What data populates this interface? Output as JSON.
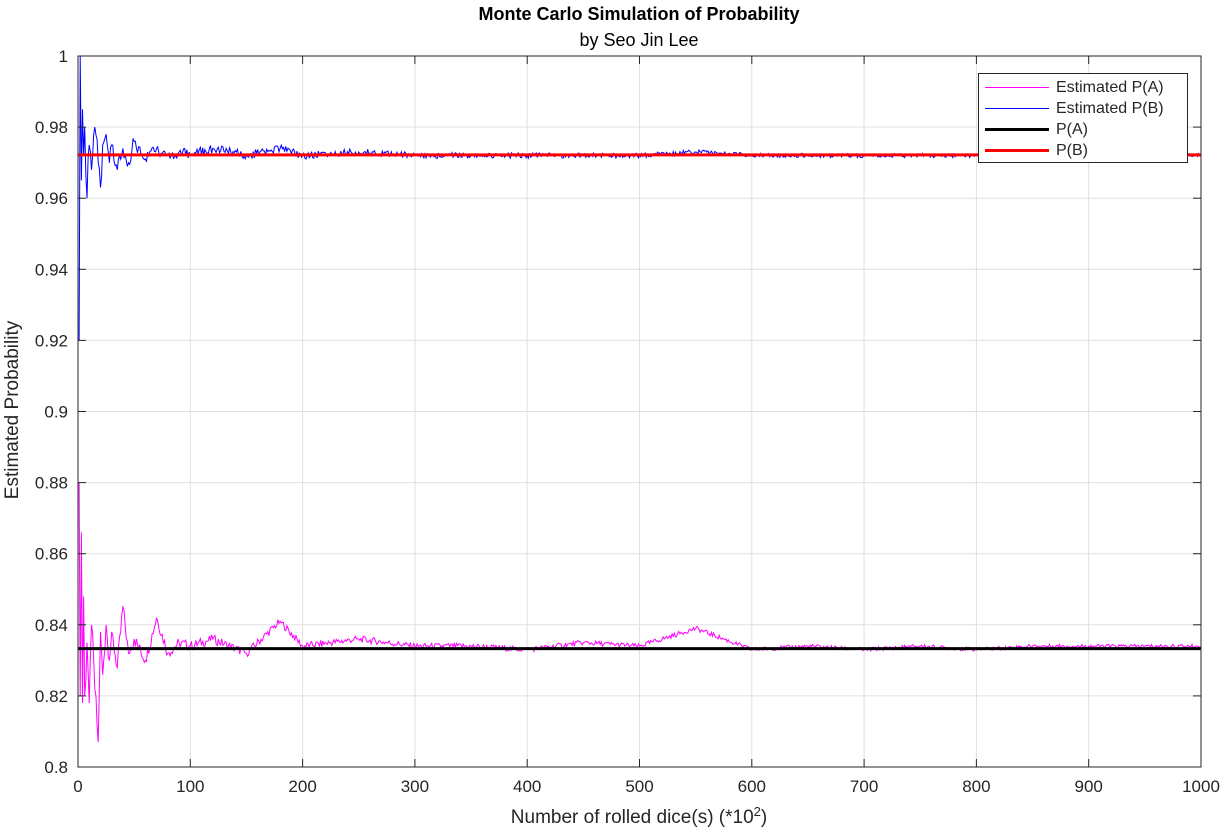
{
  "chart_data": {
    "type": "line",
    "title": "Monte Carlo Simulation of Probability",
    "subtitle": "by Seo Jin Lee",
    "xlabel_main": "Number  of  rolled  dice(s)  (*10",
    "xlabel_sup": "2",
    "xlabel_close": ")",
    "ylabel": "Estimated Probability",
    "xlim": [
      0,
      1000
    ],
    "ylim": [
      0.8,
      1.0
    ],
    "xticks": [
      0,
      100,
      200,
      300,
      400,
      500,
      600,
      700,
      800,
      900,
      1000
    ],
    "xtick_labels": [
      "0",
      "100",
      "200",
      "300",
      "400",
      "500",
      "600",
      "700",
      "800",
      "900",
      "1000"
    ],
    "yticks": [
      0.8,
      0.82,
      0.84,
      0.86,
      0.88,
      0.9,
      0.92,
      0.94,
      0.96,
      0.98,
      1.0
    ],
    "ytick_labels": [
      "0.8",
      "0.82",
      "0.84",
      "0.86",
      "0.88",
      "0.9",
      "0.92",
      "0.94",
      "0.96",
      "0.98",
      "1"
    ],
    "grid": true,
    "legend_position": "top-right",
    "series": [
      {
        "name": "Estimated P(A)",
        "color": "#ff00ff",
        "kind": "simulated",
        "x": [
          1,
          2,
          3,
          4,
          5,
          6,
          8,
          10,
          12,
          15,
          18,
          20,
          22,
          25,
          28,
          30,
          35,
          40,
          45,
          50,
          60,
          70,
          80,
          90,
          100,
          120,
          150,
          180,
          200,
          250,
          300,
          350,
          400,
          450,
          500,
          550,
          600,
          650,
          700,
          750,
          800,
          850,
          900,
          950,
          1000
        ],
        "y": [
          0.88,
          0.82,
          0.866,
          0.818,
          0.848,
          0.82,
          0.835,
          0.818,
          0.84,
          0.822,
          0.807,
          0.838,
          0.826,
          0.84,
          0.83,
          0.838,
          0.828,
          0.845,
          0.832,
          0.836,
          0.83,
          0.842,
          0.832,
          0.835,
          0.834,
          0.836,
          0.832,
          0.841,
          0.834,
          0.836,
          0.834,
          0.834,
          0.833,
          0.835,
          0.834,
          0.839,
          0.833,
          0.834,
          0.833,
          0.834,
          0.833,
          0.834,
          0.834,
          0.834,
          0.834
        ]
      },
      {
        "name": "Estimated P(B)",
        "color": "#0000ff",
        "kind": "simulated",
        "x": [
          1,
          2,
          3,
          4,
          5,
          6,
          8,
          10,
          12,
          15,
          18,
          20,
          22,
          25,
          28,
          30,
          35,
          40,
          45,
          50,
          60,
          70,
          80,
          90,
          100,
          120,
          150,
          180,
          200,
          250,
          300,
          350,
          400,
          450,
          500,
          550,
          600,
          650,
          700,
          750,
          800,
          850,
          900,
          950,
          1000
        ],
        "y": [
          0.92,
          1.0,
          0.965,
          0.985,
          0.972,
          0.98,
          0.96,
          0.975,
          0.968,
          0.98,
          0.97,
          0.963,
          0.975,
          0.978,
          0.97,
          0.975,
          0.968,
          0.974,
          0.97,
          0.976,
          0.971,
          0.974,
          0.972,
          0.973,
          0.972,
          0.974,
          0.972,
          0.974,
          0.972,
          0.973,
          0.972,
          0.972,
          0.972,
          0.972,
          0.972,
          0.973,
          0.972,
          0.972,
          0.972,
          0.972,
          0.972,
          0.972,
          0.972,
          0.972,
          0.972
        ]
      },
      {
        "name": "P(A)",
        "color": "#000000",
        "kind": "constant",
        "x": [
          0,
          1000
        ],
        "y": [
          0.8333,
          0.8333
        ]
      },
      {
        "name": "P(B)",
        "color": "#ff0000",
        "kind": "constant",
        "x": [
          0,
          1000
        ],
        "y": [
          0.9722,
          0.9722
        ]
      }
    ]
  }
}
